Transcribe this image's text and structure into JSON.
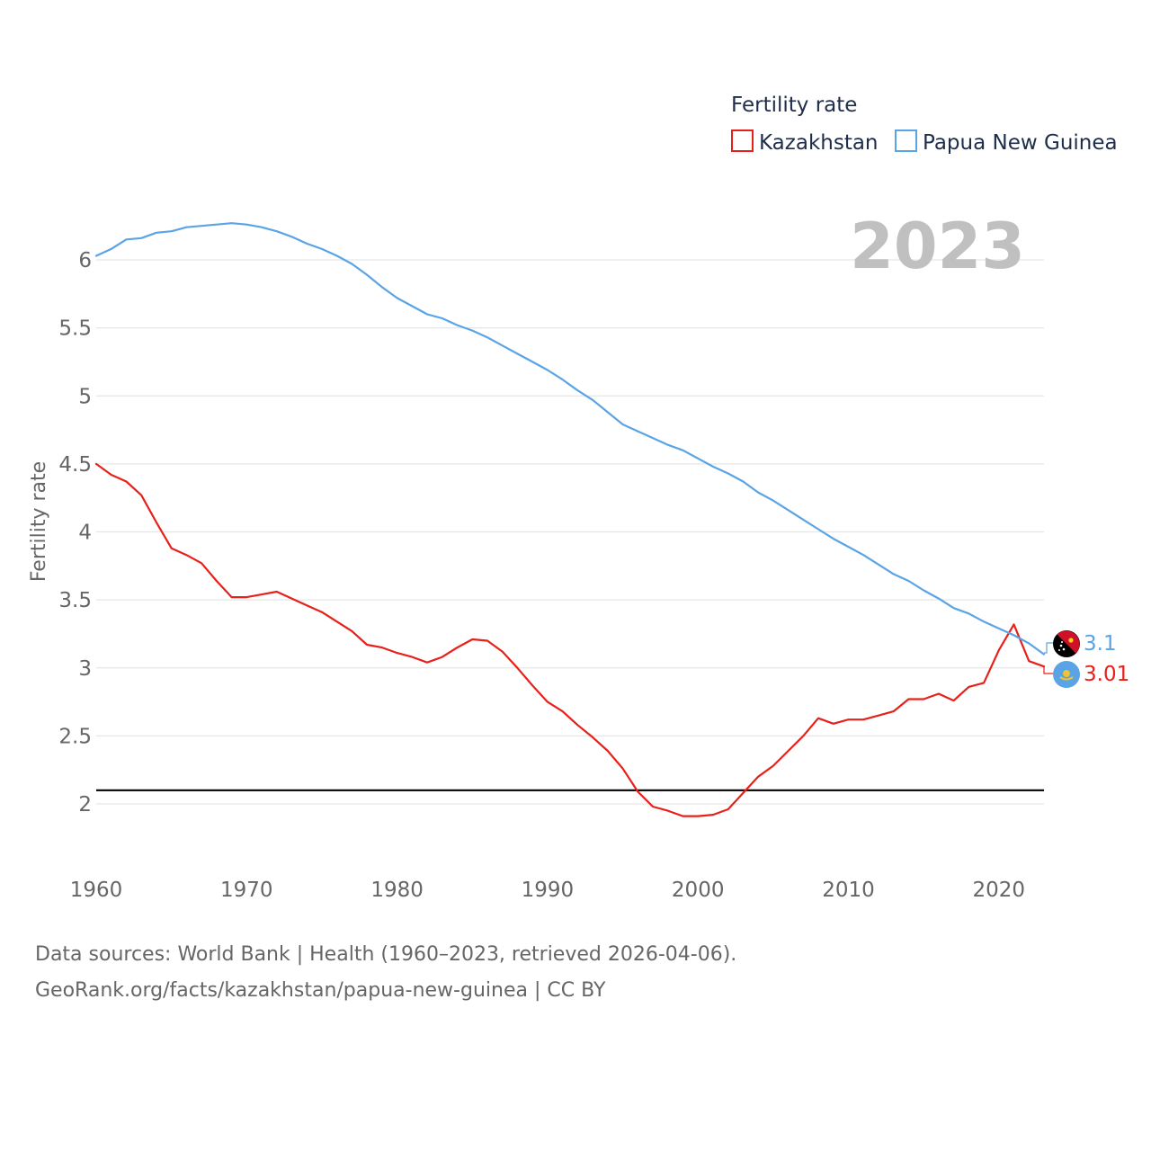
{
  "colors": {
    "kazakhstan": "#e8201a",
    "png": "#5aa4e6",
    "reference": "#111111",
    "grid": "#e6e6e6",
    "year": "#c0c0c0",
    "text": "#666666",
    "legend_text": "#1f2d4a"
  },
  "chart_data": {
    "type": "line",
    "title": "Fertility rate",
    "ylabel": "Fertility rate",
    "xlabel": "",
    "xlim": [
      1960,
      2023
    ],
    "ylim": [
      1.6,
      6.6
    ],
    "x_ticks": [
      1960,
      1970,
      1980,
      1990,
      2000,
      2010,
      2020
    ],
    "x_tick_labels": [
      "1960",
      "1970",
      "1980",
      "1990",
      "2000",
      "2010",
      "2020"
    ],
    "y_ticks": [
      2,
      2.5,
      3,
      3.5,
      4,
      4.5,
      5,
      5.5,
      6
    ],
    "y_tick_labels": [
      "2",
      "2.5",
      "3",
      "3.5",
      "4",
      "4.5",
      "5",
      "5.5",
      "6"
    ],
    "grid": true,
    "legend": {
      "title": "Fertility rate",
      "position": "top-right",
      "entries": [
        "Kazakhstan",
        "Papua New Guinea"
      ]
    },
    "current_year_label": "2023",
    "reference_line": {
      "y": 2.1
    },
    "end_labels": {
      "Kazakhstan": "3.01",
      "Papua New Guinea": "3.1"
    },
    "x": [
      1960,
      1961,
      1962,
      1963,
      1964,
      1965,
      1966,
      1967,
      1968,
      1969,
      1970,
      1971,
      1972,
      1973,
      1974,
      1975,
      1976,
      1977,
      1978,
      1979,
      1980,
      1981,
      1982,
      1983,
      1984,
      1985,
      1986,
      1987,
      1988,
      1989,
      1990,
      1991,
      1992,
      1993,
      1994,
      1995,
      1996,
      1997,
      1998,
      1999,
      2000,
      2001,
      2002,
      2003,
      2004,
      2005,
      2006,
      2007,
      2008,
      2009,
      2010,
      2011,
      2012,
      2013,
      2014,
      2015,
      2016,
      2017,
      2018,
      2019,
      2020,
      2021,
      2022,
      2023
    ],
    "series": [
      {
        "name": "Kazakhstan",
        "color": "#e8201a",
        "values": [
          4.5,
          4.42,
          4.37,
          4.27,
          4.07,
          3.88,
          3.83,
          3.77,
          3.64,
          3.52,
          3.52,
          3.54,
          3.56,
          3.51,
          3.46,
          3.41,
          3.34,
          3.27,
          3.17,
          3.15,
          3.11,
          3.08,
          3.04,
          3.08,
          3.15,
          3.21,
          3.2,
          3.12,
          3.0,
          2.87,
          2.75,
          2.68,
          2.58,
          2.49,
          2.39,
          2.26,
          2.09,
          1.98,
          1.95,
          1.91,
          1.91,
          1.92,
          1.96,
          2.08,
          2.2,
          2.28,
          2.39,
          2.5,
          2.63,
          2.59,
          2.62,
          2.62,
          2.65,
          2.68,
          2.77,
          2.77,
          2.81,
          2.76,
          2.86,
          2.89,
          3.13,
          3.32,
          3.05,
          3.01
        ]
      },
      {
        "name": "Papua New Guinea",
        "color": "#5aa4e6",
        "values": [
          6.03,
          6.08,
          6.15,
          6.16,
          6.2,
          6.21,
          6.24,
          6.25,
          6.26,
          6.27,
          6.26,
          6.24,
          6.21,
          6.17,
          6.12,
          6.08,
          6.03,
          5.97,
          5.89,
          5.8,
          5.72,
          5.66,
          5.6,
          5.57,
          5.52,
          5.48,
          5.43,
          5.37,
          5.31,
          5.25,
          5.19,
          5.12,
          5.04,
          4.97,
          4.88,
          4.79,
          4.74,
          4.69,
          4.64,
          4.6,
          4.54,
          4.48,
          4.43,
          4.37,
          4.29,
          4.23,
          4.16,
          4.09,
          4.02,
          3.95,
          3.89,
          3.83,
          3.76,
          3.69,
          3.64,
          3.57,
          3.51,
          3.44,
          3.4,
          3.34,
          3.29,
          3.24,
          3.18,
          3.1
        ]
      }
    ]
  },
  "footer": {
    "source_line": "Data sources: World Bank | Health (1960–2023, retrieved 2026-04-06).",
    "credit_line": "GeoRank.org/facts/kazakhstan/papua-new-guinea | CC BY"
  },
  "icons": {
    "png_flag": "papua-new-guinea-flag-icon",
    "kz_flag": "kazakhstan-flag-icon"
  }
}
